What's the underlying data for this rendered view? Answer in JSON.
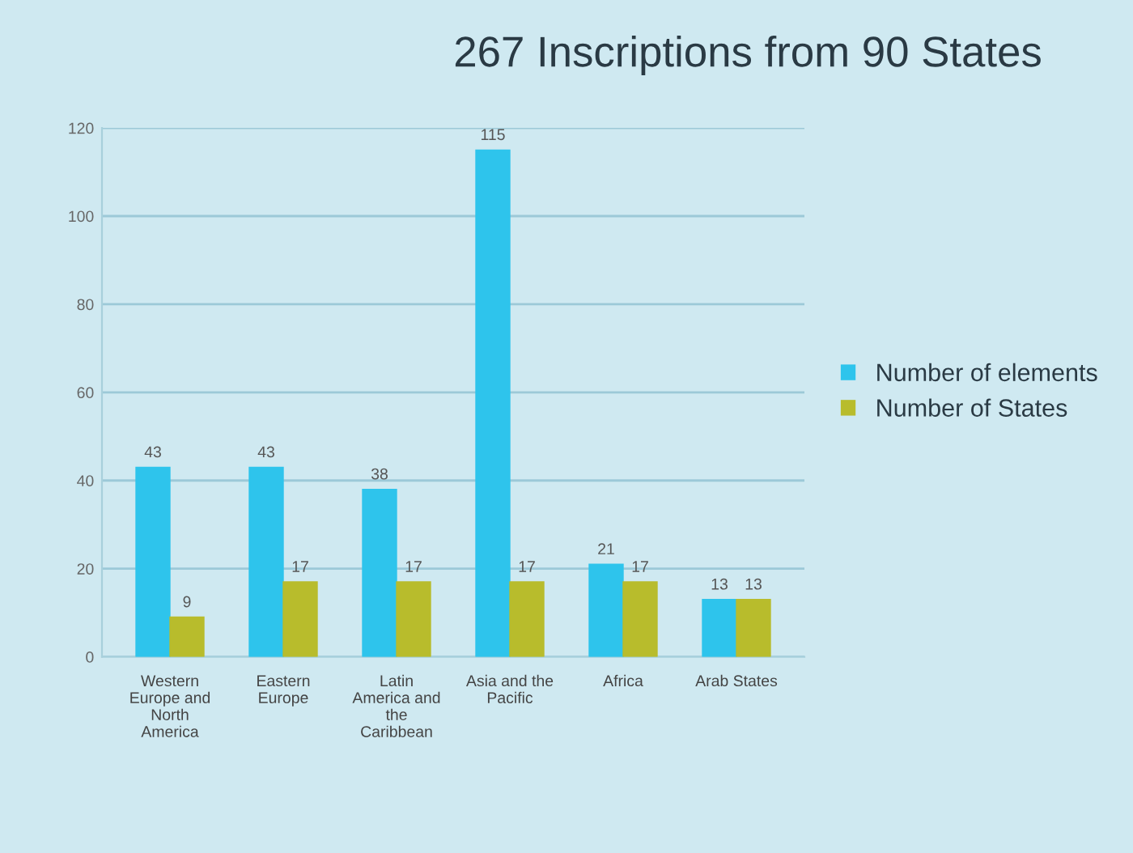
{
  "chart_data": {
    "type": "bar",
    "title": "267 Inscriptions from 90 States",
    "categories": [
      "Western\nEurope and\nNorth\nAmerica",
      "Eastern\nEurope",
      "Latin\nAmerica and\nthe\nCaribbean",
      "Asia and the\nPacific",
      "Africa",
      "Arab States"
    ],
    "series": [
      {
        "name": "Number of elements",
        "color": "#2ec4ec",
        "values": [
          43,
          43,
          38,
          115,
          21,
          13
        ]
      },
      {
        "name": "Number of States",
        "color": "#b8bc2c",
        "values": [
          9,
          17,
          17,
          17,
          17,
          13
        ]
      }
    ],
    "ylim": [
      0,
      120
    ],
    "yticks": [
      0,
      20,
      40,
      60,
      80,
      100,
      120
    ],
    "grid": "y",
    "legend": "right",
    "data_labels": true
  }
}
